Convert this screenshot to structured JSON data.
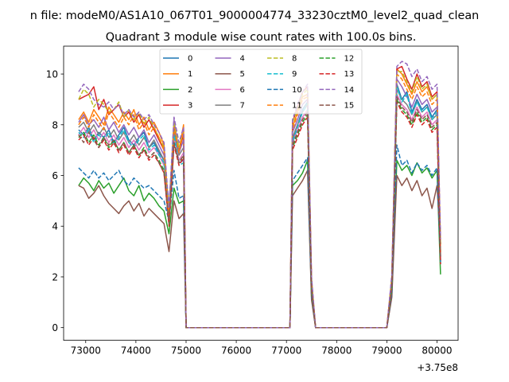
{
  "chart_data": {
    "type": "line",
    "suptitle": "n file: modeM0/AS1A10_067T01_9000004774_33230cztM0_level2_quad_clean",
    "title": "Quadrant 3 module wise count rates with 100.0s bins.",
    "xlabel": "",
    "ylabel": "",
    "offset_label": "+3.75e8",
    "xlim": [
      72560,
      80420
    ],
    "ylim": [
      -0.5,
      11.1
    ],
    "xticks": [
      73000,
      74000,
      75000,
      76000,
      77000,
      78000,
      79000,
      80000
    ],
    "xtick_labels": [
      "73000",
      "74000",
      "75000",
      "76000",
      "77000",
      "78000",
      "79000",
      "80000"
    ],
    "yticks": [
      0,
      2,
      4,
      6,
      8,
      10
    ],
    "ytick_labels": [
      "0",
      "2",
      "4",
      "6",
      "8",
      "10"
    ],
    "grid": false,
    "legend_location": "upper-center",
    "x_segments": [
      [
        72860,
        72960,
        73060,
        73160,
        73260,
        73360,
        73460,
        73560,
        73660,
        73760,
        73860,
        73960,
        74060,
        74160,
        74260,
        74360,
        74460,
        74560,
        74660,
        74760,
        74860,
        74950,
        75000
      ],
      [
        77070,
        77120,
        77220,
        77320,
        77420,
        77500,
        77580
      ],
      [
        79000,
        79100,
        79200,
        79300,
        79400,
        79500,
        79600,
        79700,
        79800,
        79900,
        80000,
        80070
      ]
    ],
    "flat_zero": [
      [
        75000,
        77070
      ],
      [
        77580,
        79000
      ]
    ],
    "series": [
      {
        "name": "0",
        "color": "#1f77b4",
        "dashed": false,
        "segments": [
          [
            7.8,
            7.6,
            7.9,
            7.4,
            7.7,
            7.5,
            7.8,
            7.3,
            7.6,
            7.9,
            7.4,
            7.2,
            7.5,
            7.7,
            7.1,
            7.3,
            6.9,
            6.6,
            4.8,
            7.7,
            6.5,
            6.6,
            0
          ],
          [
            0,
            7.4,
            8.0,
            8.6,
            8.9,
            1.6,
            0
          ],
          [
            0,
            1.6,
            9.6,
            9.0,
            9.3,
            8.5,
            9.0,
            8.6,
            8.8,
            8.3,
            8.6,
            2.5
          ]
        ]
      },
      {
        "name": "1",
        "color": "#ff7f0e",
        "dashed": false,
        "segments": [
          [
            8.2,
            8.5,
            8.1,
            8.6,
            8.3,
            8.0,
            8.7,
            8.4,
            8.1,
            8.5,
            8.2,
            8.6,
            8.0,
            8.3,
            7.8,
            8.1,
            7.7,
            7.2,
            4.5,
            8.0,
            7.0,
            8.0,
            0
          ],
          [
            0,
            7.9,
            8.5,
            9.1,
            9.2,
            1.8,
            0
          ],
          [
            0,
            1.9,
            10.2,
            10.0,
            9.6,
            9.2,
            9.7,
            9.3,
            9.5,
            9.0,
            9.2,
            3.0
          ]
        ]
      },
      {
        "name": "2",
        "color": "#2ca02c",
        "dashed": false,
        "segments": [
          [
            5.6,
            5.9,
            5.7,
            5.4,
            5.8,
            5.5,
            5.7,
            5.3,
            5.6,
            5.9,
            5.4,
            5.2,
            5.6,
            5.0,
            5.3,
            5.1,
            4.8,
            4.6,
            3.7,
            5.5,
            4.9,
            5.0,
            0
          ],
          [
            0,
            5.6,
            5.8,
            6.1,
            6.6,
            1.2,
            0
          ],
          [
            0,
            1.3,
            6.6,
            6.2,
            6.4,
            6.0,
            6.5,
            6.1,
            6.3,
            5.9,
            6.2,
            2.1
          ]
        ]
      },
      {
        "name": "3",
        "color": "#d62728",
        "dashed": false,
        "segments": [
          [
            9.0,
            9.1,
            9.2,
            9.5,
            8.6,
            9.0,
            8.4,
            8.6,
            8.8,
            8.3,
            8.5,
            8.1,
            8.4,
            7.9,
            8.2,
            7.8,
            7.4,
            7.0,
            4.4,
            8.0,
            7.0,
            7.6,
            0
          ],
          [
            0,
            8.1,
            8.7,
            9.3,
            9.5,
            1.9,
            0
          ],
          [
            0,
            2.0,
            10.2,
            10.3,
            9.8,
            9.4,
            10.0,
            9.5,
            9.7,
            9.1,
            9.3,
            3.3
          ]
        ]
      },
      {
        "name": "4",
        "color": "#9467bd",
        "dashed": false,
        "segments": [
          [
            8.1,
            8.4,
            8.0,
            8.2,
            7.9,
            8.3,
            7.8,
            8.1,
            7.7,
            8.0,
            7.6,
            7.9,
            7.5,
            7.8,
            7.3,
            7.6,
            7.2,
            6.8,
            4.6,
            8.2,
            6.9,
            7.4,
            0
          ],
          [
            0,
            7.7,
            8.2,
            8.8,
            9.0,
            1.7,
            0
          ],
          [
            0,
            1.8,
            9.8,
            9.5,
            9.1,
            8.7,
            9.2,
            8.8,
            9.0,
            8.5,
            8.7,
            2.8
          ]
        ]
      },
      {
        "name": "5",
        "color": "#8c564b",
        "dashed": false,
        "segments": [
          [
            5.6,
            5.5,
            5.1,
            5.3,
            5.6,
            5.2,
            4.9,
            4.7,
            4.5,
            4.8,
            5.0,
            4.6,
            4.9,
            4.4,
            4.7,
            4.5,
            4.3,
            4.1,
            3.0,
            5.0,
            4.3,
            4.5,
            0
          ],
          [
            0,
            5.2,
            5.5,
            5.8,
            6.2,
            1.1,
            0
          ],
          [
            0,
            1.2,
            6.0,
            5.6,
            5.9,
            5.4,
            5.8,
            5.2,
            5.5,
            4.7,
            5.6,
            3.3
          ]
        ]
      },
      {
        "name": "6",
        "color": "#e377c2",
        "dashed": false,
        "segments": [
          [
            7.6,
            7.9,
            7.5,
            7.8,
            7.4,
            7.7,
            7.3,
            7.6,
            7.2,
            7.5,
            7.1,
            7.4,
            7.0,
            7.3,
            6.9,
            7.1,
            6.8,
            6.4,
            4.2,
            7.5,
            6.6,
            6.9,
            0
          ],
          [
            0,
            7.3,
            7.8,
            8.3,
            8.6,
            1.6,
            0
          ],
          [
            0,
            1.7,
            9.2,
            8.8,
            8.6,
            8.2,
            8.7,
            8.3,
            8.5,
            8.0,
            8.2,
            2.7
          ]
        ]
      },
      {
        "name": "7",
        "color": "#7f7f7f",
        "dashed": false,
        "segments": [
          [
            7.9,
            8.1,
            7.7,
            8.0,
            7.6,
            7.9,
            7.5,
            7.8,
            7.4,
            7.7,
            7.3,
            7.6,
            7.2,
            7.5,
            7.1,
            7.4,
            7.0,
            6.6,
            4.4,
            7.8,
            6.8,
            7.1,
            0
          ],
          [
            0,
            7.5,
            8.0,
            8.5,
            8.8,
            1.6,
            0
          ],
          [
            0,
            1.7,
            9.4,
            9.0,
            8.8,
            8.4,
            8.9,
            8.5,
            8.7,
            8.2,
            8.4,
            2.8
          ]
        ]
      },
      {
        "name": "8",
        "color": "#bcbd22",
        "dashed": true,
        "segments": [
          [
            9.0,
            9.4,
            9.2,
            8.7,
            9.0,
            8.8,
            8.5,
            8.6,
            8.9,
            8.3,
            8.6,
            8.2,
            8.5,
            8.0,
            8.3,
            7.9,
            7.5,
            7.1,
            4.6,
            8.1,
            7.1,
            7.7,
            0
          ],
          [
            0,
            8.1,
            8.6,
            9.2,
            9.4,
            1.9,
            0
          ],
          [
            0,
            2.0,
            10.1,
            10.1,
            9.7,
            9.3,
            9.9,
            9.4,
            9.6,
            9.0,
            9.2,
            3.2
          ]
        ]
      },
      {
        "name": "9",
        "color": "#17becf",
        "dashed": true,
        "segments": [
          [
            7.7,
            7.5,
            7.8,
            7.3,
            7.6,
            7.4,
            7.7,
            7.2,
            7.5,
            7.8,
            7.3,
            7.1,
            7.4,
            7.6,
            7.0,
            7.2,
            6.8,
            6.5,
            4.7,
            7.6,
            6.4,
            6.5,
            0
          ],
          [
            0,
            7.3,
            7.9,
            8.5,
            8.8,
            1.6,
            0
          ],
          [
            0,
            1.6,
            9.5,
            8.9,
            9.2,
            8.4,
            8.9,
            8.5,
            8.7,
            8.2,
            8.5,
            2.6
          ]
        ]
      },
      {
        "name": "10",
        "color": "#1f77b4",
        "dashed": true,
        "segments": [
          [
            6.3,
            6.1,
            5.9,
            6.2,
            5.9,
            6.1,
            5.8,
            6.0,
            6.2,
            5.8,
            5.6,
            5.9,
            5.7,
            5.5,
            5.6,
            5.4,
            5.2,
            5.0,
            4.2,
            6.2,
            5.1,
            5.2,
            0
          ],
          [
            0,
            5.8,
            6.1,
            6.4,
            6.7,
            1.3,
            0
          ],
          [
            0,
            1.4,
            7.2,
            6.4,
            6.6,
            6.1,
            6.5,
            6.2,
            6.4,
            6.0,
            6.3,
            2.6
          ]
        ]
      },
      {
        "name": "11",
        "color": "#ff7f0e",
        "dashed": true,
        "segments": [
          [
            8.0,
            8.3,
            7.9,
            8.4,
            8.1,
            7.8,
            8.5,
            8.2,
            7.9,
            8.3,
            8.0,
            8.4,
            7.8,
            8.1,
            7.6,
            7.9,
            7.5,
            7.0,
            4.4,
            7.9,
            6.9,
            7.8,
            0
          ],
          [
            0,
            7.8,
            8.4,
            9.0,
            9.1,
            1.8,
            0
          ],
          [
            0,
            1.9,
            10.0,
            9.8,
            9.4,
            9.0,
            9.5,
            9.1,
            9.3,
            8.8,
            9.0,
            2.9
          ]
        ]
      },
      {
        "name": "12",
        "color": "#2ca02c",
        "dashed": true,
        "segments": [
          [
            7.5,
            7.7,
            7.3,
            7.6,
            7.2,
            7.5,
            7.1,
            7.4,
            7.0,
            7.3,
            6.9,
            7.2,
            6.8,
            7.1,
            6.7,
            6.9,
            6.6,
            6.2,
            4.1,
            7.3,
            6.5,
            6.8,
            0
          ],
          [
            0,
            7.1,
            7.6,
            8.1,
            8.4,
            1.5,
            0
          ],
          [
            0,
            1.6,
            9.0,
            8.6,
            8.4,
            8.0,
            8.5,
            8.1,
            8.3,
            7.8,
            8.0,
            2.6
          ]
        ]
      },
      {
        "name": "13",
        "color": "#d62728",
        "dashed": true,
        "segments": [
          [
            7.4,
            7.6,
            7.2,
            7.5,
            7.1,
            7.4,
            7.0,
            7.3,
            6.9,
            7.2,
            6.8,
            7.1,
            6.7,
            7.0,
            6.6,
            6.8,
            6.5,
            6.1,
            4.0,
            7.2,
            6.4,
            6.7,
            0
          ],
          [
            0,
            7.0,
            7.5,
            8.0,
            8.3,
            1.5,
            0
          ],
          [
            0,
            1.6,
            8.9,
            8.5,
            8.3,
            7.9,
            8.4,
            8.0,
            8.2,
            7.7,
            7.9,
            2.5
          ]
        ]
      },
      {
        "name": "14",
        "color": "#9467bd",
        "dashed": true,
        "segments": [
          [
            9.3,
            9.6,
            9.4,
            9.0,
            8.8,
            8.7,
            8.9,
            8.6,
            8.8,
            8.4,
            8.6,
            8.3,
            8.5,
            8.2,
            8.4,
            8.0,
            7.7,
            7.3,
            4.7,
            8.3,
            7.3,
            7.9,
            0
          ],
          [
            0,
            8.2,
            8.8,
            9.3,
            9.6,
            2.0,
            0
          ],
          [
            0,
            2.1,
            10.3,
            10.5,
            10.4,
            9.9,
            10.2,
            9.7,
            9.9,
            9.4,
            9.6,
            3.5
          ]
        ]
      },
      {
        "name": "15",
        "color": "#8c564b",
        "dashed": true,
        "segments": [
          [
            7.6,
            7.3,
            7.7,
            7.4,
            7.1,
            7.5,
            7.2,
            7.4,
            7.0,
            7.3,
            6.9,
            7.2,
            6.8,
            7.0,
            6.7,
            6.9,
            6.5,
            6.1,
            4.1,
            7.3,
            6.5,
            6.8,
            0
          ],
          [
            0,
            7.2,
            7.7,
            8.2,
            8.5,
            1.5,
            0
          ],
          [
            0,
            1.6,
            9.1,
            8.7,
            8.5,
            8.1,
            8.6,
            8.2,
            8.4,
            7.9,
            8.1,
            2.7
          ]
        ]
      }
    ]
  }
}
